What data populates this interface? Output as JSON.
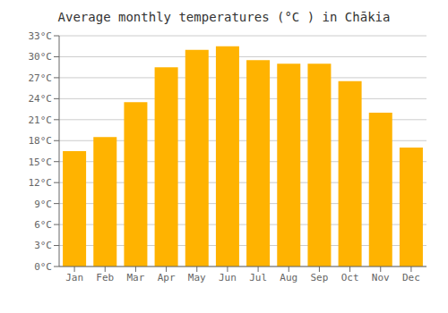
{
  "chart_data": {
    "type": "bar",
    "title": "Average monthly temperatures (°C ) in Chākia",
    "categories": [
      "Jan",
      "Feb",
      "Mar",
      "Apr",
      "May",
      "Jun",
      "Jul",
      "Aug",
      "Sep",
      "Oct",
      "Nov",
      "Dec"
    ],
    "values": [
      16.5,
      18.5,
      23.5,
      28.5,
      31.0,
      31.5,
      29.5,
      29.0,
      29.0,
      26.5,
      22.0,
      17.0
    ],
    "color": "#FFB300",
    "ylim": [
      0,
      33
    ],
    "yticks": [
      {
        "value": 0,
        "label": "0°C"
      },
      {
        "value": 3,
        "label": "3°C"
      },
      {
        "value": 6,
        "label": "6°C"
      },
      {
        "value": 9,
        "label": "9°C"
      },
      {
        "value": 12,
        "label": "12°C"
      },
      {
        "value": 15,
        "label": "15°C"
      },
      {
        "value": 18,
        "label": "18°C"
      },
      {
        "value": 21,
        "label": "21°C"
      },
      {
        "value": 24,
        "label": "24°C"
      },
      {
        "value": 27,
        "label": "27°C"
      },
      {
        "value": 30,
        "label": "30°C"
      },
      {
        "value": 33,
        "label": "33°C"
      }
    ],
    "grid": true
  }
}
